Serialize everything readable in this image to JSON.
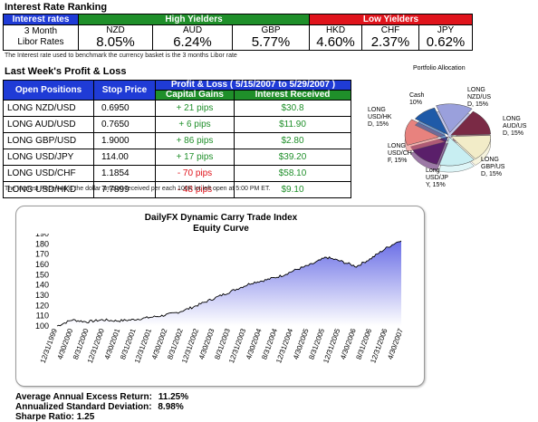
{
  "rates": {
    "title": "Interest Rate Ranking",
    "interest_rates_label": "Interest rates",
    "libor_label_1": "3 Month",
    "libor_label_2": "Libor Rates",
    "high_label": "High Yielders",
    "low_label": "Low Yielders",
    "currencies": [
      {
        "code": "NZD",
        "rate": "8.05%"
      },
      {
        "code": "AUD",
        "rate": "6.24%"
      },
      {
        "code": "GBP",
        "rate": "5.77%"
      },
      {
        "code": "HKD",
        "rate": "4.60%"
      },
      {
        "code": "CHF",
        "rate": "2.37%"
      },
      {
        "code": "JPY",
        "rate": "0.62%"
      }
    ],
    "note": "The Interest rate used to benchmark the currency basket is the 3 months Libor rate"
  },
  "pl": {
    "title": "Last Week's Profit & Loss",
    "col_positions": "Open Positions",
    "col_stop": "Stop Price",
    "col_pl_header": "Profit & Loss ( 5/15/2007 to 5/29/2007 )",
    "col_gains": "Capital Gains",
    "col_interest": "Interest Received",
    "rows": [
      {
        "position": "LONG NZD/USD",
        "stop": "0.6950",
        "gains": "+ 21 pips",
        "interest": "$30.8"
      },
      {
        "position": "LONG AUD/USD",
        "stop": "0.7650",
        "gains": "+ 6 pips",
        "interest": "$11.90"
      },
      {
        "position": "LONG GBP/USD",
        "stop": "1.9000",
        "gains": "+ 86 pips",
        "interest": "$2.80"
      },
      {
        "position": "LONG USD/JPY",
        "stop": "114.00",
        "gains": "+ 17 pips",
        "interest": "$39.20"
      },
      {
        "position": "LONG USD/CHF",
        "stop": "1.1854",
        "gains": "- 70 pips",
        "interest": "$58.10"
      },
      {
        "position": "LONG USD/HKD",
        "stop": "7.7899",
        "gains": "- 48 pips",
        "interest": "$9.10"
      }
    ],
    "note": "The Interest Received is the dollar amount received per each 100K lot left open at 5:00 PM ET."
  },
  "pie": {
    "title": "Portfolio Allocation",
    "slices": [
      {
        "label": "LONG NZD/USD, 15%",
        "value": 15,
        "color": "#9aa0dc"
      },
      {
        "label": "LONG AUD/USD, 15%",
        "value": 15,
        "color": "#7a2a45"
      },
      {
        "label": "LONG GBP/USD, 15%",
        "value": 15,
        "color": "#f2ecc8"
      },
      {
        "label": "Long USD/JPY, 15%",
        "value": 15,
        "color": "#c8eef2"
      },
      {
        "label": "LONG USD/CHF, 15%",
        "value": 15,
        "color": "#5a1f6a"
      },
      {
        "label": "LONG USD/HKD, 15%",
        "value": 15,
        "color": "#e8827e"
      },
      {
        "label": "Cash 10%",
        "value": 10,
        "color": "#1f5aa8"
      }
    ],
    "label_lines": {
      "cash": [
        "Cash",
        "10%"
      ],
      "nzd": [
        "LONG",
        "NZD/US",
        "D, 15%"
      ],
      "aud": [
        "LONG",
        "AUD/US",
        "D, 15%"
      ],
      "gbp": [
        "LONG",
        "GBP/US",
        "D, 15%"
      ],
      "jpy": [
        "Long",
        "USD/JP",
        "Y, 15%"
      ],
      "chf": [
        "LONG",
        "USD/CH",
        "F, 15%"
      ],
      "hkd": [
        "LONG",
        "USD/HK",
        "D, 15%"
      ]
    }
  },
  "chart_data": {
    "type": "area",
    "title": "DailyFX Dynamic Carry Trade Index",
    "subtitle": "Equity Curve",
    "ylim": [
      100,
      190
    ],
    "yticks": [
      "190",
      "180",
      "170",
      "160",
      "150",
      "140",
      "130",
      "120",
      "110",
      "100"
    ],
    "xticks": [
      "12/31/1999",
      "4/30/2000",
      "8/31/2000",
      "12/31/2000",
      "4/30/2001",
      "8/31/2001",
      "12/31/2001",
      "4/30/2002",
      "8/31/2002",
      "12/31/2002",
      "4/30/2003",
      "8/31/2003",
      "12/31/2003",
      "4/30/2004",
      "8/31/2004",
      "12/31/2004",
      "4/30/2005",
      "8/31/2005",
      "12/31/2005",
      "4/30/2006",
      "8/31/2006",
      "12/31/2006",
      "4/30/2007"
    ],
    "x": [
      "12/31/1999",
      "4/30/2000",
      "8/31/2000",
      "12/31/2000",
      "4/30/2001",
      "8/31/2001",
      "12/31/2001",
      "4/30/2002",
      "8/31/2002",
      "12/31/2002",
      "4/30/2003",
      "8/31/2003",
      "12/31/2003",
      "4/30/2004",
      "8/31/2004",
      "12/31/2004",
      "4/30/2005",
      "8/31/2005",
      "12/31/2005",
      "4/30/2006",
      "8/31/2006",
      "12/31/2006",
      "4/30/2007",
      "5/29/2007"
    ],
    "values": [
      100,
      106,
      104,
      106,
      105,
      106,
      108,
      110,
      113,
      118,
      124,
      130,
      136,
      142,
      145,
      149,
      155,
      160,
      167,
      163,
      158,
      166,
      176,
      184
    ],
    "grid": false
  },
  "stats": {
    "l1": "Average Annual Excess Return:",
    "v1": "11.25%",
    "l2": "Annualized Standard Deviation:",
    "v2": "8.98%",
    "l3": "Sharpe Ratio: 1.25"
  }
}
